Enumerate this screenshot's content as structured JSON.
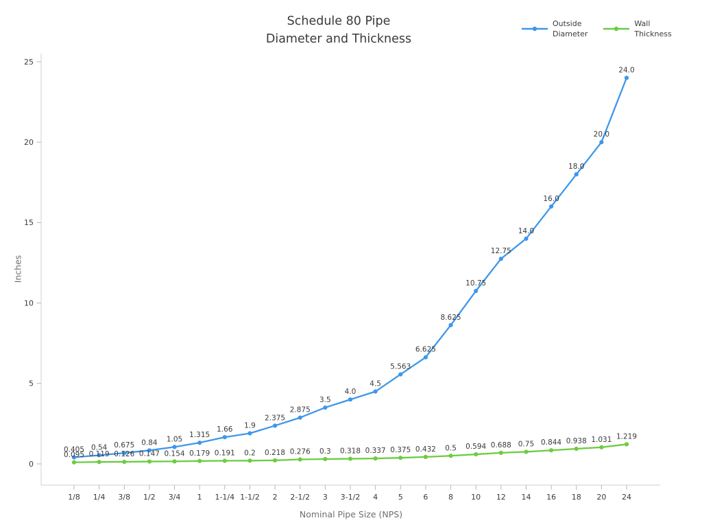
{
  "chart_data": {
    "type": "line",
    "title": "Schedule 80 Pipe Diameter and Thickness",
    "title_line1": "Schedule 80 Pipe",
    "title_line2": "Diameter and Thickness",
    "xlabel": "Nominal Pipe Size (NPS)",
    "ylabel": "Inches",
    "categories": [
      "1/8",
      "1/4",
      "3/8",
      "1/2",
      "3/4",
      "1",
      "1-1/4",
      "1-1/2",
      "2",
      "2-1/2",
      "3",
      "3-1/2",
      "4",
      "5",
      "6",
      "8",
      "10",
      "12",
      "14",
      "16",
      "18",
      "20",
      "24"
    ],
    "series": [
      {
        "name": "Outside Diameter",
        "legend_lines": [
          "Outside",
          "Diameter"
        ],
        "color": "#3d97ea",
        "values": [
          0.405,
          0.54,
          0.675,
          0.84,
          1.05,
          1.315,
          1.66,
          1.9,
          2.375,
          2.875,
          3.5,
          4.0,
          4.5,
          5.563,
          6.625,
          8.625,
          10.75,
          12.75,
          14.0,
          16.0,
          18.0,
          20.0,
          24.0
        ],
        "labels": [
          "0.405",
          "0.54",
          "0.675",
          "0.84",
          "1.05",
          "1.315",
          "1.66",
          "1.9",
          "2.375",
          "2.875",
          "3.5",
          "4.0",
          "4.5",
          "5.563",
          "6.625",
          "8.625",
          "10.75",
          "12.75",
          "14.0",
          "16.0",
          "18.0",
          "20.0",
          "24.0"
        ]
      },
      {
        "name": "Wall Thickness",
        "legend_lines": [
          "Wall",
          "Thickness"
        ],
        "color": "#6ccc41",
        "values": [
          0.095,
          0.119,
          0.126,
          0.147,
          0.154,
          0.179,
          0.191,
          0.2,
          0.218,
          0.276,
          0.3,
          0.318,
          0.337,
          0.375,
          0.432,
          0.5,
          0.594,
          0.688,
          0.75,
          0.844,
          0.938,
          1.031,
          1.219
        ],
        "labels": [
          "0.095",
          "0.119",
          "0.126",
          "0.147",
          "0.154",
          "0.179",
          "0.191",
          "0.2",
          "0.218",
          "0.276",
          "0.3",
          "0.318",
          "0.337",
          "0.375",
          "0.432",
          "0.5",
          "0.594",
          "0.688",
          "0.75",
          "0.844",
          "0.938",
          "1.031",
          "1.219"
        ]
      }
    ],
    "yticks": [
      0,
      5,
      10,
      15,
      20,
      25
    ],
    "ytick_labels": [
      "0",
      "5",
      "10",
      "15",
      "20",
      "25"
    ],
    "ylim": [
      0,
      25
    ],
    "grid": false,
    "legend_position": "top-right",
    "colors": {
      "spine": "#cfcfcf",
      "tick": "#b5b5b5",
      "tick_label": "#3a3a3a",
      "data_label": "#3a3a3a",
      "axis_title": "#6e6e6e",
      "title": "#3a3a3a",
      "background": "#ffffff"
    }
  }
}
